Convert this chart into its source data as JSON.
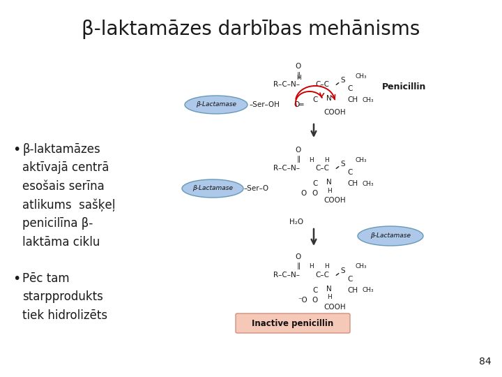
{
  "title": "β-laktamāzes darbības mehānisms",
  "title_fontsize": 20,
  "title_color": "#1a1a1a",
  "background_color": "#ffffff",
  "bullet_points": [
    "β-laktamāzes\naktīvajā centrā\nesošais serīna\natlikums  sašķeļ\npenicilīna β-\nlaktāma ciklu",
    "Pēc tam\nstarpprodukts\ntiek hidrolizēts"
  ],
  "bullet_fontsize": 12,
  "bullet_color": "#1a1a1a",
  "page_number": "84",
  "page_number_fontsize": 10,
  "enzyme_ellipse_color": "#adc8e8",
  "enzyme_edge_color": "#6699bb",
  "inactive_box_color": "#f5c8b8",
  "inactive_box_edge": "#d09080",
  "arrow_color": "#333333",
  "red_arrow_color": "#cc0000",
  "chem_color": "#1a1a1a",
  "penicillin_label": "Penicillin",
  "inactive_label": "Inactive penicillin",
  "enzyme_label": "β-Lactamase"
}
